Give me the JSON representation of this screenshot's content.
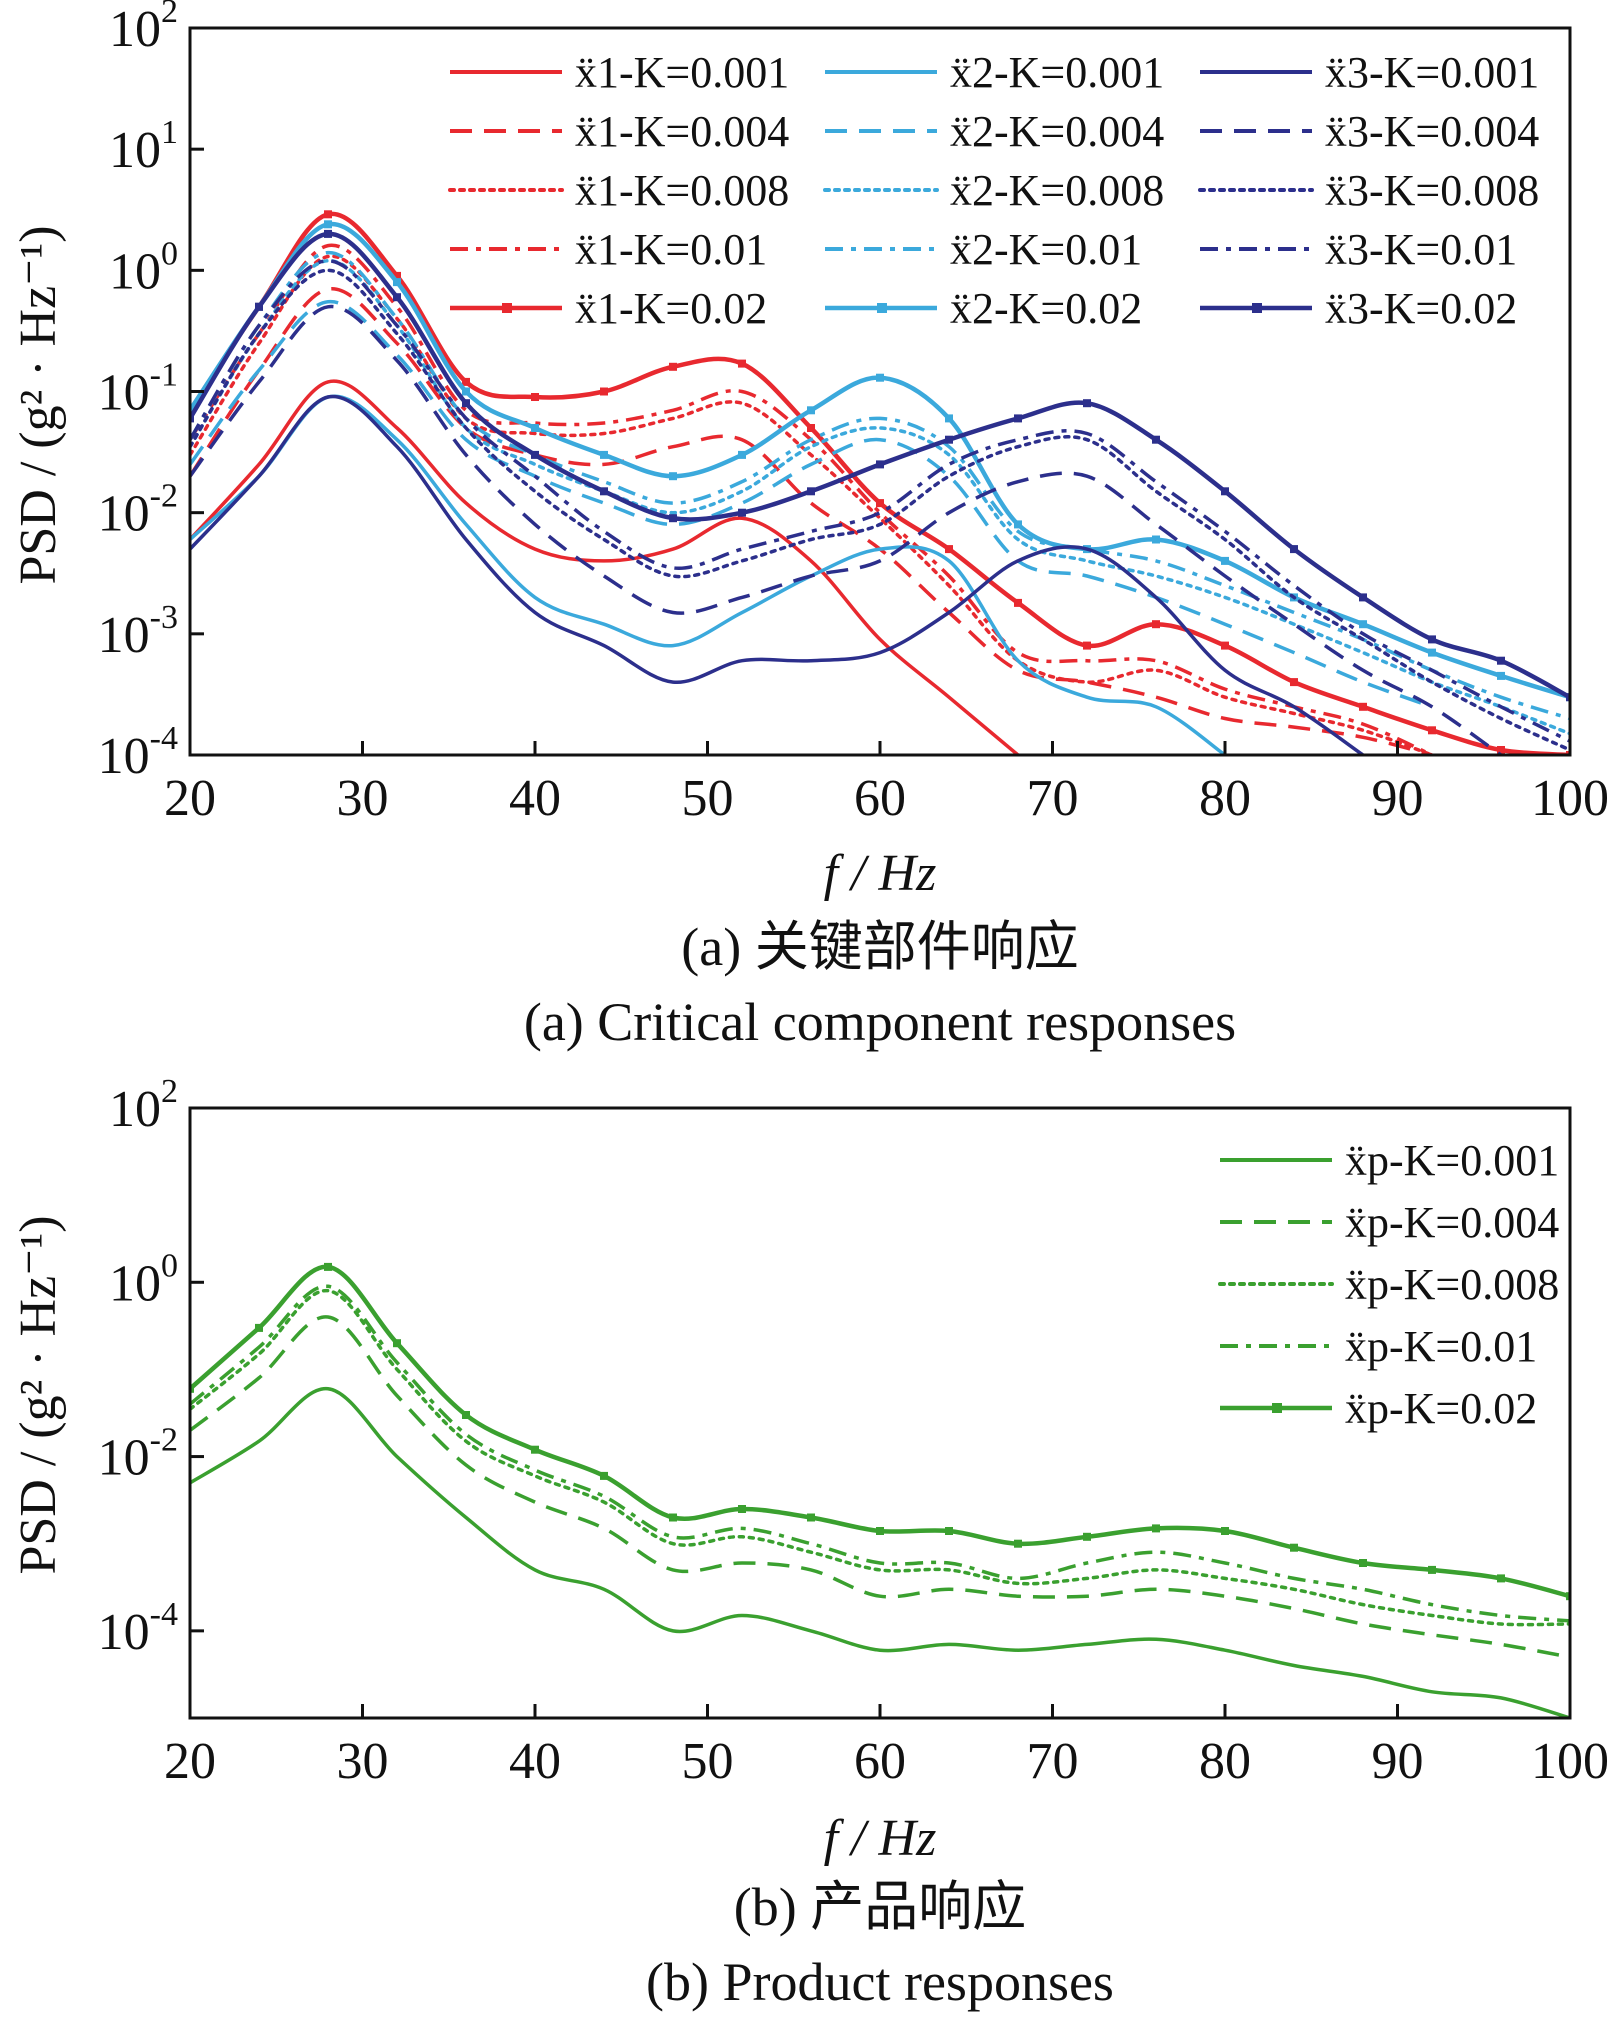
{
  "panels": [
    {
      "id": "a",
      "caption_zh": "(a)  关键部件响应",
      "caption_en": "(a)  Critical component responses",
      "ylabel": "PSD / (g² · Hz⁻¹)",
      "xlabel": "f / Hz"
    },
    {
      "id": "b",
      "caption_zh": "(b)  产品响应",
      "caption_en": "(b)  Product responses",
      "ylabel": "PSD / (g² · Hz⁻¹)",
      "xlabel": "f / Hz"
    }
  ],
  "colors": {
    "x1": "#e8292f",
    "x2": "#3ba9dc",
    "x3": "#2c2f8c",
    "xp": "#3aa02f",
    "axis": "#111111"
  },
  "line_styles": {
    "0.001": "solid",
    "0.004": "dashed",
    "0.008": "dotted",
    "0.01": "dash-dot",
    "0.02": "solid-with-markers"
  },
  "chart_data": [
    {
      "type": "line",
      "panel": "a",
      "yscale": "log",
      "xlim": [
        20,
        100
      ],
      "ylim": [
        0.0001,
        100
      ],
      "xticks": [
        20,
        30,
        40,
        50,
        60,
        70,
        80,
        90,
        100
      ],
      "yticks": [
        "10^2",
        "10^1",
        "10^0",
        "10^-1",
        "10^-2",
        "10^-3",
        "10^-4"
      ],
      "xlabel": "f / Hz",
      "ylabel": "PSD / (g²·Hz⁻¹)",
      "legend_position": "top-right",
      "series": [
        {
          "name": "ẍ1-K=0.001",
          "color_key": "x1",
          "style": "solid",
          "x": [
            20,
            24,
            28,
            32,
            36,
            40,
            44,
            48,
            52,
            56,
            60,
            64,
            68
          ],
          "y": [
            0.006,
            0.025,
            0.12,
            0.05,
            0.012,
            0.005,
            0.004,
            0.005,
            0.009,
            0.004,
            0.0009,
            0.0003,
            0.0001
          ]
        },
        {
          "name": "ẍ1-K=0.004",
          "color_key": "x1",
          "style": "dashed",
          "x": [
            20,
            24,
            28,
            32,
            36,
            40,
            44,
            48,
            52,
            56,
            60,
            64,
            68,
            72,
            76,
            80,
            84,
            88,
            92
          ],
          "y": [
            0.02,
            0.15,
            0.7,
            0.25,
            0.05,
            0.03,
            0.025,
            0.035,
            0.04,
            0.012,
            0.005,
            0.0015,
            0.0005,
            0.0004,
            0.0003,
            0.0002,
            0.00017,
            0.00014,
            0.0001
          ]
        },
        {
          "name": "ẍ1-K=0.008",
          "color_key": "x1",
          "style": "dotted",
          "x": [
            20,
            24,
            28,
            32,
            36,
            40,
            44,
            48,
            52,
            56,
            60,
            64,
            68,
            72,
            76,
            80,
            84,
            88,
            92
          ],
          "y": [
            0.03,
            0.25,
            1.3,
            0.4,
            0.06,
            0.045,
            0.045,
            0.06,
            0.08,
            0.03,
            0.009,
            0.0025,
            0.0006,
            0.0004,
            0.0005,
            0.0003,
            0.00022,
            0.00016,
            0.0001
          ]
        },
        {
          "name": "ẍ1-K=0.01",
          "color_key": "x1",
          "style": "dash-dot",
          "x": [
            20,
            24,
            28,
            32,
            36,
            40,
            44,
            48,
            52,
            56,
            60,
            64,
            68,
            72,
            76,
            80,
            84,
            88,
            92
          ],
          "y": [
            0.04,
            0.3,
            1.6,
            0.5,
            0.07,
            0.055,
            0.055,
            0.07,
            0.1,
            0.04,
            0.01,
            0.003,
            0.0007,
            0.0006,
            0.0006,
            0.00035,
            0.00025,
            0.00018,
            0.0001
          ]
        },
        {
          "name": "ẍ1-K=0.02",
          "color_key": "x1",
          "style": "solid-with-markers",
          "x": [
            20,
            24,
            28,
            32,
            36,
            40,
            44,
            48,
            52,
            56,
            60,
            64,
            68,
            72,
            76,
            80,
            84,
            88,
            92,
            96,
            100
          ],
          "y": [
            0.07,
            0.5,
            2.9,
            0.9,
            0.12,
            0.09,
            0.1,
            0.16,
            0.17,
            0.05,
            0.012,
            0.005,
            0.0018,
            0.0008,
            0.0012,
            0.0008,
            0.0004,
            0.00025,
            0.00016,
            0.00011,
            0.0001
          ]
        },
        {
          "name": "ẍ2-K=0.001",
          "color_key": "x2",
          "style": "solid",
          "x": [
            20,
            24,
            28,
            32,
            36,
            40,
            44,
            48,
            52,
            56,
            60,
            64,
            68,
            72,
            76,
            80
          ],
          "y": [
            0.006,
            0.02,
            0.09,
            0.04,
            0.008,
            0.002,
            0.0012,
            0.0008,
            0.0015,
            0.003,
            0.005,
            0.004,
            0.0006,
            0.0003,
            0.00025,
            0.0001
          ]
        },
        {
          "name": "ẍ2-K=0.004",
          "color_key": "x2",
          "style": "dashed",
          "x": [
            20,
            24,
            28,
            32,
            36,
            40,
            44,
            48,
            52,
            56,
            60,
            64,
            68,
            72,
            76,
            80,
            84,
            88,
            92
          ],
          "y": [
            0.025,
            0.15,
            0.55,
            0.2,
            0.04,
            0.02,
            0.012,
            0.008,
            0.012,
            0.025,
            0.04,
            0.02,
            0.004,
            0.003,
            0.002,
            0.0012,
            0.0007,
            0.0004,
            0.00025
          ]
        },
        {
          "name": "ẍ2-K=0.008",
          "color_key": "x2",
          "style": "dotted",
          "x": [
            20,
            24,
            28,
            32,
            36,
            40,
            44,
            48,
            52,
            56,
            60,
            64,
            68,
            72,
            76,
            80,
            84,
            88,
            92,
            96,
            100
          ],
          "y": [
            0.035,
            0.3,
            1.2,
            0.35,
            0.05,
            0.025,
            0.015,
            0.01,
            0.015,
            0.035,
            0.05,
            0.03,
            0.006,
            0.004,
            0.003,
            0.002,
            0.0012,
            0.0007,
            0.0004,
            0.00025,
            0.00015
          ]
        },
        {
          "name": "ẍ2-K=0.01",
          "color_key": "x2",
          "style": "dash-dot",
          "x": [
            20,
            24,
            28,
            32,
            36,
            40,
            44,
            48,
            52,
            56,
            60,
            64,
            68,
            72,
            76,
            80,
            84,
            88,
            92,
            96,
            100
          ],
          "y": [
            0.04,
            0.35,
            1.4,
            0.4,
            0.06,
            0.03,
            0.018,
            0.012,
            0.018,
            0.04,
            0.06,
            0.035,
            0.007,
            0.005,
            0.004,
            0.0025,
            0.0015,
            0.0009,
            0.0005,
            0.0003,
            0.0002
          ]
        },
        {
          "name": "ẍ2-K=0.02",
          "color_key": "x2",
          "style": "solid-with-markers",
          "x": [
            20,
            24,
            28,
            32,
            36,
            40,
            44,
            48,
            52,
            56,
            60,
            64,
            68,
            72,
            76,
            80,
            84,
            88,
            92,
            96,
            100
          ],
          "y": [
            0.07,
            0.5,
            2.4,
            0.8,
            0.1,
            0.05,
            0.03,
            0.02,
            0.03,
            0.07,
            0.13,
            0.06,
            0.008,
            0.005,
            0.006,
            0.004,
            0.002,
            0.0012,
            0.0007,
            0.00045,
            0.0003
          ]
        },
        {
          "name": "ẍ3-K=0.001",
          "color_key": "x3",
          "style": "solid",
          "x": [
            20,
            24,
            28,
            32,
            36,
            40,
            44,
            48,
            52,
            56,
            60,
            64,
            68,
            72,
            76,
            80,
            84,
            88
          ],
          "y": [
            0.005,
            0.02,
            0.09,
            0.035,
            0.006,
            0.0015,
            0.0008,
            0.0004,
            0.0006,
            0.0006,
            0.0007,
            0.0015,
            0.004,
            0.005,
            0.002,
            0.0005,
            0.00025,
            0.0001
          ]
        },
        {
          "name": "ẍ3-K=0.004",
          "color_key": "x3",
          "style": "dashed",
          "x": [
            20,
            24,
            28,
            32,
            36,
            40,
            44,
            48,
            52,
            56,
            60,
            64,
            68,
            72,
            76,
            80,
            84,
            88,
            92,
            96
          ],
          "y": [
            0.02,
            0.12,
            0.5,
            0.18,
            0.03,
            0.008,
            0.003,
            0.0015,
            0.002,
            0.003,
            0.004,
            0.01,
            0.018,
            0.02,
            0.008,
            0.003,
            0.0012,
            0.0005,
            0.00025,
            0.0001
          ]
        },
        {
          "name": "ẍ3-K=0.008",
          "color_key": "x3",
          "style": "dotted",
          "x": [
            20,
            24,
            28,
            32,
            36,
            40,
            44,
            48,
            52,
            56,
            60,
            64,
            68,
            72,
            76,
            80,
            84,
            88,
            92,
            96,
            100
          ],
          "y": [
            0.035,
            0.3,
            1.0,
            0.3,
            0.05,
            0.015,
            0.006,
            0.003,
            0.004,
            0.006,
            0.008,
            0.02,
            0.035,
            0.04,
            0.015,
            0.006,
            0.002,
            0.0009,
            0.0004,
            0.0002,
            0.00011
          ]
        },
        {
          "name": "ẍ3-K=0.01",
          "color_key": "x3",
          "style": "dash-dot",
          "x": [
            20,
            24,
            28,
            32,
            36,
            40,
            44,
            48,
            52,
            56,
            60,
            64,
            68,
            72,
            76,
            80,
            84,
            88,
            92,
            96,
            100
          ],
          "y": [
            0.04,
            0.35,
            1.2,
            0.35,
            0.06,
            0.02,
            0.007,
            0.0035,
            0.005,
            0.007,
            0.01,
            0.025,
            0.04,
            0.045,
            0.018,
            0.007,
            0.0025,
            0.001,
            0.0005,
            0.00025,
            0.00013
          ]
        },
        {
          "name": "ẍ3-K=0.02",
          "color_key": "x3",
          "style": "solid-with-markers",
          "x": [
            20,
            24,
            28,
            32,
            36,
            40,
            44,
            48,
            52,
            56,
            60,
            64,
            68,
            72,
            76,
            80,
            84,
            88,
            92,
            96,
            100
          ],
          "y": [
            0.06,
            0.5,
            2.0,
            0.6,
            0.08,
            0.03,
            0.015,
            0.009,
            0.01,
            0.015,
            0.025,
            0.04,
            0.06,
            0.08,
            0.04,
            0.015,
            0.005,
            0.002,
            0.0009,
            0.0006,
            0.0003
          ]
        }
      ]
    },
    {
      "type": "line",
      "panel": "b",
      "yscale": "log",
      "xlim": [
        20,
        100
      ],
      "ylim": [
        1e-05,
        100
      ],
      "xticks": [
        20,
        30,
        40,
        50,
        60,
        70,
        80,
        90,
        100
      ],
      "yticks": [
        "10^2",
        "10^0",
        "10^-2",
        "10^-4"
      ],
      "xlabel": "f / Hz",
      "ylabel": "PSD / (g²·Hz⁻¹)",
      "legend_position": "top-right",
      "series": [
        {
          "name": "ẍp-K=0.001",
          "color_key": "xp",
          "style": "solid",
          "x": [
            20,
            24,
            28,
            32,
            36,
            40,
            44,
            48,
            52,
            56,
            60,
            64,
            68,
            72,
            76,
            80,
            84,
            88,
            92,
            96,
            100
          ],
          "y": [
            0.005,
            0.015,
            0.06,
            0.01,
            0.002,
            0.0005,
            0.0003,
            0.0001,
            0.00015,
            0.0001,
            6e-05,
            7e-05,
            6e-05,
            7e-05,
            8e-05,
            6e-05,
            4e-05,
            3e-05,
            2e-05,
            1.7e-05,
            1e-05
          ]
        },
        {
          "name": "ẍp-K=0.004",
          "color_key": "xp",
          "style": "dashed",
          "x": [
            20,
            24,
            28,
            32,
            36,
            40,
            44,
            48,
            52,
            56,
            60,
            64,
            68,
            72,
            76,
            80,
            84,
            88,
            92,
            96,
            100
          ],
          "y": [
            0.02,
            0.08,
            0.4,
            0.05,
            0.008,
            0.003,
            0.0015,
            0.0005,
            0.0006,
            0.0005,
            0.00025,
            0.0003,
            0.00025,
            0.00025,
            0.0003,
            0.00025,
            0.00018,
            0.00012,
            9e-05,
            7e-05,
            5e-05
          ]
        },
        {
          "name": "ẍp-K=0.008",
          "color_key": "xp",
          "style": "dotted",
          "x": [
            20,
            24,
            28,
            32,
            36,
            40,
            44,
            48,
            52,
            56,
            60,
            64,
            68,
            72,
            76,
            80,
            84,
            88,
            92,
            96,
            100
          ],
          "y": [
            0.035,
            0.15,
            0.8,
            0.1,
            0.015,
            0.006,
            0.003,
            0.001,
            0.0012,
            0.0008,
            0.0005,
            0.0005,
            0.00035,
            0.0004,
            0.0005,
            0.0004,
            0.0003,
            0.0002,
            0.00015,
            0.00012,
            0.00012
          ]
        },
        {
          "name": "ẍp-K=0.01",
          "color_key": "xp",
          "style": "dash-dot",
          "x": [
            20,
            24,
            28,
            32,
            36,
            40,
            44,
            48,
            52,
            56,
            60,
            64,
            68,
            72,
            76,
            80,
            84,
            88,
            92,
            96,
            100
          ],
          "y": [
            0.04,
            0.18,
            0.9,
            0.12,
            0.018,
            0.007,
            0.0035,
            0.0012,
            0.0015,
            0.001,
            0.0006,
            0.0006,
            0.0004,
            0.0006,
            0.0008,
            0.0006,
            0.0004,
            0.0003,
            0.0002,
            0.00015,
            0.00013
          ]
        },
        {
          "name": "ẍp-K=0.02",
          "color_key": "xp",
          "style": "solid-with-markers",
          "x": [
            20,
            24,
            28,
            32,
            36,
            40,
            44,
            48,
            52,
            56,
            60,
            64,
            68,
            72,
            76,
            80,
            84,
            88,
            92,
            96,
            100
          ],
          "y": [
            0.06,
            0.3,
            1.5,
            0.2,
            0.03,
            0.012,
            0.006,
            0.002,
            0.0025,
            0.002,
            0.0014,
            0.0014,
            0.001,
            0.0012,
            0.0015,
            0.0014,
            0.0009,
            0.0006,
            0.0005,
            0.0004,
            0.00025
          ]
        }
      ]
    }
  ]
}
